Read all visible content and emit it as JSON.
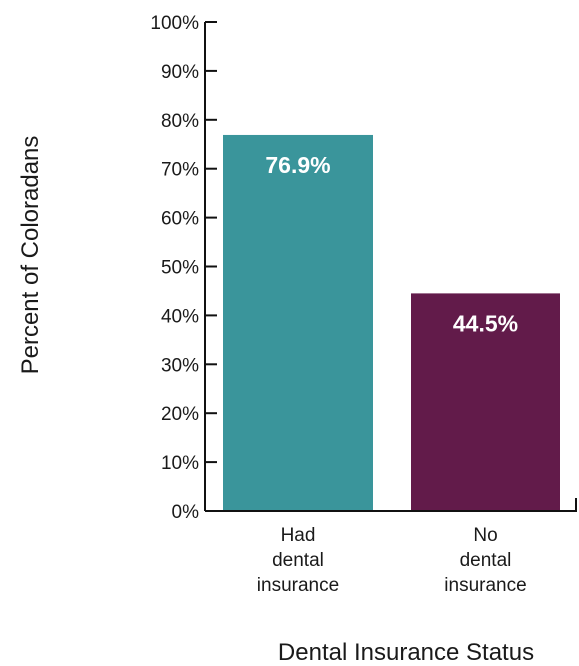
{
  "chart_data": {
    "type": "bar",
    "categories": [
      [
        "Had",
        "dental",
        "insurance"
      ],
      [
        "No",
        "dental",
        "insurance"
      ]
    ],
    "values": [
      76.9,
      44.5
    ],
    "data_labels": [
      "76.9%",
      "44.5%"
    ],
    "colors": [
      "#3a959b",
      "#621b4a"
    ],
    "ylabel": "Percent of Coloradans",
    "xlabel": "Dental Insurance Status",
    "ylim": [
      0,
      100
    ],
    "yticks": [
      0,
      10,
      20,
      30,
      40,
      50,
      60,
      70,
      80,
      90,
      100
    ],
    "ytick_labels": [
      "0%",
      "10%",
      "20%",
      "30%",
      "40%",
      "50%",
      "60%",
      "70%",
      "80%",
      "90%",
      "100%"
    ],
    "grid": false
  }
}
